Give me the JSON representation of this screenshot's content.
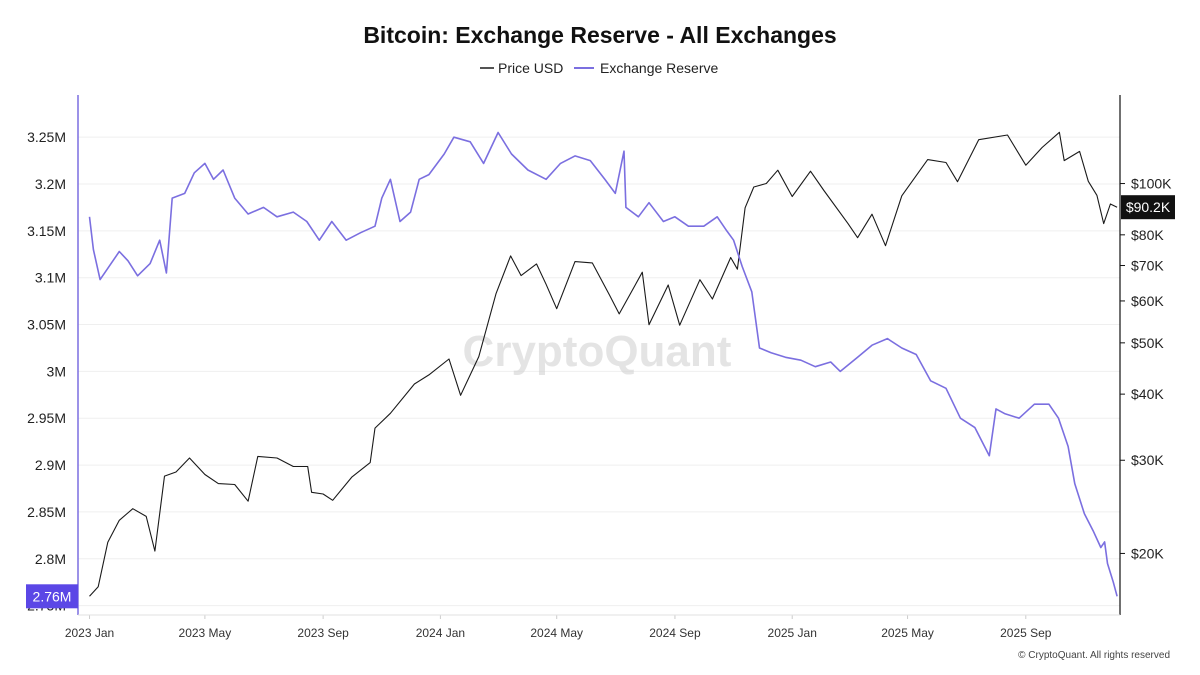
{
  "chart_data": {
    "type": "line",
    "title": "Bitcoin: Exchange Reserve - All Exchanges",
    "legend_placement": "top-center",
    "grid": true,
    "watermark": "CryptoQuant",
    "copyright": "© CryptoQuant. All rights reserved",
    "x_ticks": [
      "2023 Jan",
      "2023 May",
      "2023 Sep",
      "2024 Jan",
      "2024 May",
      "2024 Sep",
      "2025 Jan",
      "2025 May",
      "2025 Sep"
    ],
    "x_tick_dates": [
      "2023-01-01",
      "2023-05-01",
      "2023-09-01",
      "2024-01-01",
      "2024-05-01",
      "2024-09-01",
      "2025-01-01",
      "2025-05-01",
      "2025-09-01"
    ],
    "xlim": [
      "2022-12-20",
      "2025-12-08"
    ],
    "left_axis": {
      "ticks": [
        "2.75M",
        "2.8M",
        "2.85M",
        "2.9M",
        "2.95M",
        "3M",
        "3.05M",
        "3.1M",
        "3.15M",
        "3.2M",
        "3.25M"
      ],
      "tick_values": [
        2750000,
        2800000,
        2850000,
        2900000,
        2950000,
        3000000,
        3050000,
        3100000,
        3150000,
        3200000,
        3250000
      ],
      "ylim": [
        2740000,
        3295000
      ]
    },
    "right_axis": {
      "scale": "log",
      "ticks": [
        "$20K",
        "$30K",
        "$40K",
        "$50K",
        "$60K",
        "$70K",
        "$80K",
        "$100K"
      ],
      "tick_values": [
        20000,
        30000,
        40000,
        50000,
        60000,
        70000,
        80000,
        100000
      ],
      "ylim": [
        15300,
        147000
      ]
    },
    "current_reserve_label": "2.76M",
    "current_reserve_value": 2760000,
    "current_price_label": "$90.2K",
    "current_price_value": 90200,
    "colors": {
      "price": "#1a1a1a",
      "reserve": "#7b6fe0",
      "reserve_badge": "#5b47e6",
      "price_badge": "#111111",
      "left_axis_line": "#7b6fe0",
      "right_axis_line": "#111111",
      "grid": "#efefef"
    },
    "series": [
      {
        "name": "Price USD",
        "axis": "right",
        "color": "#1a1a1a",
        "points": [
          [
            "2023-01-01",
            16600
          ],
          [
            "2023-01-10",
            17300
          ],
          [
            "2023-01-20",
            21000
          ],
          [
            "2023-02-01",
            23100
          ],
          [
            "2023-02-15",
            24300
          ],
          [
            "2023-03-01",
            23500
          ],
          [
            "2023-03-10",
            20200
          ],
          [
            "2023-03-20",
            28000
          ],
          [
            "2023-04-01",
            28500
          ],
          [
            "2023-04-15",
            30300
          ],
          [
            "2023-05-01",
            28200
          ],
          [
            "2023-05-15",
            27100
          ],
          [
            "2023-06-01",
            27000
          ],
          [
            "2023-06-15",
            25100
          ],
          [
            "2023-06-25",
            30500
          ],
          [
            "2023-07-15",
            30300
          ],
          [
            "2023-08-01",
            29200
          ],
          [
            "2023-08-16",
            29200
          ],
          [
            "2023-08-20",
            26100
          ],
          [
            "2023-09-01",
            25900
          ],
          [
            "2023-09-11",
            25200
          ],
          [
            "2023-10-01",
            27900
          ],
          [
            "2023-10-20",
            29700
          ],
          [
            "2023-10-25",
            34500
          ],
          [
            "2023-11-10",
            36800
          ],
          [
            "2023-12-05",
            41800
          ],
          [
            "2023-12-20",
            43500
          ],
          [
            "2024-01-10",
            46600
          ],
          [
            "2024-01-22",
            39800
          ],
          [
            "2024-02-10",
            47100
          ],
          [
            "2024-02-28",
            62000
          ],
          [
            "2024-03-14",
            73000
          ],
          [
            "2024-03-25",
            67000
          ],
          [
            "2024-04-10",
            70500
          ],
          [
            "2024-04-20",
            64500
          ],
          [
            "2024-05-01",
            58000
          ],
          [
            "2024-05-20",
            71200
          ],
          [
            "2024-06-07",
            70800
          ],
          [
            "2024-06-25",
            61500
          ],
          [
            "2024-07-05",
            56700
          ],
          [
            "2024-07-29",
            68000
          ],
          [
            "2024-08-05",
            54100
          ],
          [
            "2024-08-25",
            64300
          ],
          [
            "2024-09-06",
            54000
          ],
          [
            "2024-09-27",
            65800
          ],
          [
            "2024-10-10",
            60500
          ],
          [
            "2024-10-29",
            72500
          ],
          [
            "2024-11-05",
            68900
          ],
          [
            "2024-11-13",
            90000
          ],
          [
            "2024-11-22",
            98500
          ],
          [
            "2024-12-05",
            100000
          ],
          [
            "2024-12-17",
            106000
          ],
          [
            "2025-01-01",
            94500
          ],
          [
            "2025-01-20",
            105500
          ],
          [
            "2025-02-03",
            97000
          ],
          [
            "2025-02-28",
            84000
          ],
          [
            "2025-03-10",
            79000
          ],
          [
            "2025-03-25",
            87500
          ],
          [
            "2025-04-08",
            76300
          ],
          [
            "2025-04-25",
            94800
          ],
          [
            "2025-05-22",
            111000
          ],
          [
            "2025-06-10",
            109600
          ],
          [
            "2025-06-22",
            100800
          ],
          [
            "2025-07-14",
            121000
          ],
          [
            "2025-08-13",
            123500
          ],
          [
            "2025-09-01",
            108300
          ],
          [
            "2025-09-18",
            117000
          ],
          [
            "2025-10-06",
            125000
          ],
          [
            "2025-10-11",
            110500
          ],
          [
            "2025-10-27",
            115000
          ],
          [
            "2025-11-05",
            101000
          ],
          [
            "2025-11-14",
            95000
          ],
          [
            "2025-11-21",
            84000
          ],
          [
            "2025-11-28",
            91500
          ],
          [
            "2025-12-05",
            90200
          ]
        ]
      },
      {
        "name": "Exchange Reserve",
        "axis": "left",
        "color": "#7b6fe0",
        "points": [
          [
            "2023-01-01",
            3165000
          ],
          [
            "2023-01-05",
            3130000
          ],
          [
            "2023-01-12",
            3098000
          ],
          [
            "2023-01-20",
            3110000
          ],
          [
            "2023-02-01",
            3128000
          ],
          [
            "2023-02-10",
            3118000
          ],
          [
            "2023-02-20",
            3102000
          ],
          [
            "2023-03-05",
            3115000
          ],
          [
            "2023-03-15",
            3140000
          ],
          [
            "2023-03-22",
            3105000
          ],
          [
            "2023-03-28",
            3185000
          ],
          [
            "2023-04-10",
            3190000
          ],
          [
            "2023-04-20",
            3212000
          ],
          [
            "2023-05-01",
            3222000
          ],
          [
            "2023-05-10",
            3205000
          ],
          [
            "2023-05-20",
            3215000
          ],
          [
            "2023-06-01",
            3185000
          ],
          [
            "2023-06-15",
            3168000
          ],
          [
            "2023-07-01",
            3175000
          ],
          [
            "2023-07-15",
            3165000
          ],
          [
            "2023-08-01",
            3170000
          ],
          [
            "2023-08-15",
            3160000
          ],
          [
            "2023-08-28",
            3140000
          ],
          [
            "2023-09-10",
            3160000
          ],
          [
            "2023-09-25",
            3140000
          ],
          [
            "2023-10-10",
            3148000
          ],
          [
            "2023-10-25",
            3155000
          ],
          [
            "2023-11-01",
            3185000
          ],
          [
            "2023-11-10",
            3205000
          ],
          [
            "2023-11-20",
            3160000
          ],
          [
            "2023-12-01",
            3170000
          ],
          [
            "2023-12-10",
            3205000
          ],
          [
            "2023-12-20",
            3210000
          ],
          [
            "2024-01-05",
            3232000
          ],
          [
            "2024-01-15",
            3250000
          ],
          [
            "2024-02-01",
            3245000
          ],
          [
            "2024-02-15",
            3222000
          ],
          [
            "2024-03-01",
            3255000
          ],
          [
            "2024-03-15",
            3232000
          ],
          [
            "2024-04-01",
            3215000
          ],
          [
            "2024-04-20",
            3205000
          ],
          [
            "2024-05-05",
            3222000
          ],
          [
            "2024-05-20",
            3230000
          ],
          [
            "2024-06-05",
            3225000
          ],
          [
            "2024-06-20",
            3205000
          ],
          [
            "2024-07-01",
            3190000
          ],
          [
            "2024-07-10",
            3235000
          ],
          [
            "2024-07-12",
            3175000
          ],
          [
            "2024-07-25",
            3165000
          ],
          [
            "2024-08-05",
            3180000
          ],
          [
            "2024-08-20",
            3160000
          ],
          [
            "2024-09-01",
            3165000
          ],
          [
            "2024-09-15",
            3155000
          ],
          [
            "2024-10-01",
            3155000
          ],
          [
            "2024-10-15",
            3165000
          ],
          [
            "2024-10-25",
            3150000
          ],
          [
            "2024-11-01",
            3140000
          ],
          [
            "2024-11-10",
            3112000
          ],
          [
            "2024-11-20",
            3085000
          ],
          [
            "2024-11-28",
            3025000
          ],
          [
            "2024-12-10",
            3020000
          ],
          [
            "2024-12-25",
            3015000
          ],
          [
            "2025-01-10",
            3012000
          ],
          [
            "2025-01-25",
            3005000
          ],
          [
            "2025-02-10",
            3010000
          ],
          [
            "2025-02-20",
            3000000
          ],
          [
            "2025-03-10",
            3015000
          ],
          [
            "2025-03-25",
            3028000
          ],
          [
            "2025-04-10",
            3035000
          ],
          [
            "2025-04-25",
            3025000
          ],
          [
            "2025-05-10",
            3018000
          ],
          [
            "2025-05-25",
            2990000
          ],
          [
            "2025-06-10",
            2982000
          ],
          [
            "2025-06-25",
            2950000
          ],
          [
            "2025-07-10",
            2940000
          ],
          [
            "2025-07-25",
            2910000
          ],
          [
            "2025-08-01",
            2960000
          ],
          [
            "2025-08-10",
            2955000
          ],
          [
            "2025-08-25",
            2950000
          ],
          [
            "2025-09-10",
            2965000
          ],
          [
            "2025-09-25",
            2965000
          ],
          [
            "2025-10-05",
            2950000
          ],
          [
            "2025-10-15",
            2920000
          ],
          [
            "2025-10-22",
            2880000
          ],
          [
            "2025-11-01",
            2848000
          ],
          [
            "2025-11-10",
            2830000
          ],
          [
            "2025-11-18",
            2812000
          ],
          [
            "2025-11-22",
            2818000
          ],
          [
            "2025-11-25",
            2795000
          ],
          [
            "2025-12-01",
            2775000
          ],
          [
            "2025-12-05",
            2760000
          ]
        ]
      }
    ]
  }
}
